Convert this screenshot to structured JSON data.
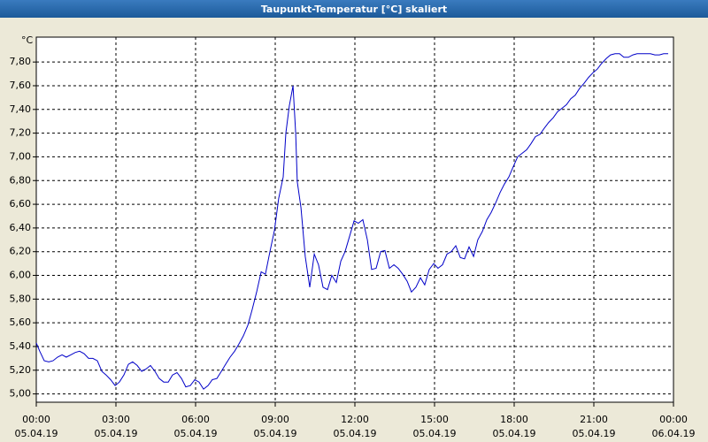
{
  "chart_data": {
    "type": "line",
    "title": "Taupunkt-Temperatur [°C] skaliert",
    "y_unit": "°C",
    "xlim": [
      0,
      24
    ],
    "xticks": [
      {
        "value": 0,
        "label": "00:00"
      },
      {
        "value": 3,
        "label": "03:00"
      },
      {
        "value": 6,
        "label": "06:00"
      },
      {
        "value": 9,
        "label": "09:00"
      },
      {
        "value": 12,
        "label": "12:00"
      },
      {
        "value": 15,
        "label": "15:00"
      },
      {
        "value": 18,
        "label": "18:00"
      },
      {
        "value": 21,
        "label": "21:00"
      },
      {
        "value": 24,
        "label": "00:00"
      }
    ],
    "xtick_dates": [
      "05.04.19",
      "05.04.19",
      "05.04.19",
      "05.04.19",
      "05.04.19",
      "05.04.19",
      "05.04.19",
      "05.04.19",
      "06.04.19"
    ],
    "ylim": [
      4.93,
      8.01
    ],
    "yticks": [
      {
        "value": 5.0,
        "label": "5,00"
      },
      {
        "value": 5.2,
        "label": "5,20"
      },
      {
        "value": 5.4,
        "label": "5,40"
      },
      {
        "value": 5.6,
        "label": "5,60"
      },
      {
        "value": 5.8,
        "label": "5,80"
      },
      {
        "value": 6.0,
        "label": "6,00"
      },
      {
        "value": 6.2,
        "label": "6,20"
      },
      {
        "value": 6.4,
        "label": "6,40"
      },
      {
        "value": 6.6,
        "label": "6,60"
      },
      {
        "value": 6.8,
        "label": "6,80"
      },
      {
        "value": 7.0,
        "label": "7,00"
      },
      {
        "value": 7.2,
        "label": "7,20"
      },
      {
        "value": 7.4,
        "label": "7,40"
      },
      {
        "value": 7.6,
        "label": "7,60"
      },
      {
        "value": 7.8,
        "label": "7,80"
      }
    ],
    "grid": true,
    "x": [
      0,
      0.13,
      0.3,
      0.47,
      0.63,
      0.8,
      0.97,
      1.13,
      1.3,
      1.47,
      1.63,
      1.8,
      1.97,
      2.13,
      2.3,
      2.47,
      2.63,
      2.8,
      2.97,
      3.13,
      3.3,
      3.47,
      3.63,
      3.8,
      3.97,
      4.13,
      4.3,
      4.47,
      4.63,
      4.8,
      4.97,
      5.13,
      5.3,
      5.47,
      5.63,
      5.8,
      5.97,
      6.13,
      6.3,
      6.47,
      6.63,
      6.8,
      6.97,
      7.13,
      7.3,
      7.47,
      7.63,
      7.8,
      7.97,
      8.13,
      8.3,
      8.47,
      8.63,
      8.8,
      8.97,
      9.13,
      9.3,
      9.4,
      9.53,
      9.67,
      9.77,
      9.83,
      9.97,
      10.13,
      10.3,
      10.47,
      10.63,
      10.8,
      10.97,
      11.13,
      11.3,
      11.47,
      11.63,
      11.8,
      11.97,
      12.13,
      12.3,
      12.47,
      12.63,
      12.8,
      12.97,
      13.13,
      13.3,
      13.47,
      13.63,
      13.8,
      13.97,
      14.13,
      14.3,
      14.47,
      14.63,
      14.8,
      14.97,
      15.13,
      15.3,
      15.47,
      15.63,
      15.8,
      15.97,
      16.13,
      16.3,
      16.47,
      16.63,
      16.8,
      16.97,
      17.13,
      17.3,
      17.47,
      17.63,
      17.8,
      17.97,
      18.13,
      18.3,
      18.47,
      18.63,
      18.8,
      18.97,
      19.13,
      19.3,
      19.47,
      19.63,
      19.8,
      19.97,
      20.13,
      20.3,
      20.47,
      20.63,
      20.8,
      20.97,
      21.13,
      21.3,
      21.47,
      21.63,
      21.8,
      21.97,
      22.13,
      22.3,
      22.47,
      22.63,
      22.8,
      22.97,
      23.13,
      23.3,
      23.47,
      23.63,
      23.8
    ],
    "series": [
      {
        "name": "Taupunkt-Temperatur",
        "color": "#0000c8",
        "values": [
          5.43,
          5.36,
          5.28,
          5.27,
          5.28,
          5.31,
          5.33,
          5.31,
          5.33,
          5.35,
          5.36,
          5.34,
          5.3,
          5.3,
          5.28,
          5.19,
          5.16,
          5.12,
          5.07,
          5.1,
          5.16,
          5.25,
          5.27,
          5.24,
          5.19,
          5.21,
          5.24,
          5.19,
          5.13,
          5.1,
          5.1,
          5.16,
          5.18,
          5.13,
          5.06,
          5.07,
          5.12,
          5.1,
          5.04,
          5.07,
          5.12,
          5.13,
          5.19,
          5.25,
          5.31,
          5.36,
          5.42,
          5.49,
          5.58,
          5.71,
          5.86,
          6.03,
          6.01,
          6.2,
          6.38,
          6.65,
          6.83,
          7.2,
          7.43,
          7.6,
          7.2,
          6.79,
          6.57,
          6.16,
          5.9,
          6.18,
          6.09,
          5.9,
          5.88,
          6.0,
          5.94,
          6.12,
          6.2,
          6.33,
          6.46,
          6.44,
          6.47,
          6.3,
          6.05,
          6.06,
          6.2,
          6.21,
          6.06,
          6.09,
          6.06,
          6.01,
          5.95,
          5.86,
          5.9,
          5.98,
          5.92,
          6.05,
          6.1,
          6.06,
          6.09,
          6.18,
          6.2,
          6.25,
          6.15,
          6.14,
          6.24,
          6.16,
          6.3,
          6.37,
          6.47,
          6.53,
          6.61,
          6.7,
          6.77,
          6.83,
          6.92,
          7.0,
          7.03,
          7.06,
          7.11,
          7.17,
          7.19,
          7.24,
          7.29,
          7.33,
          7.38,
          7.41,
          7.44,
          7.49,
          7.52,
          7.58,
          7.62,
          7.67,
          7.71,
          7.74,
          7.79,
          7.83,
          7.86,
          7.87,
          7.87,
          7.84,
          7.84,
          7.86,
          7.87,
          7.87,
          7.87,
          7.87,
          7.86,
          7.86,
          7.87,
          7.87
        ]
      }
    ]
  }
}
